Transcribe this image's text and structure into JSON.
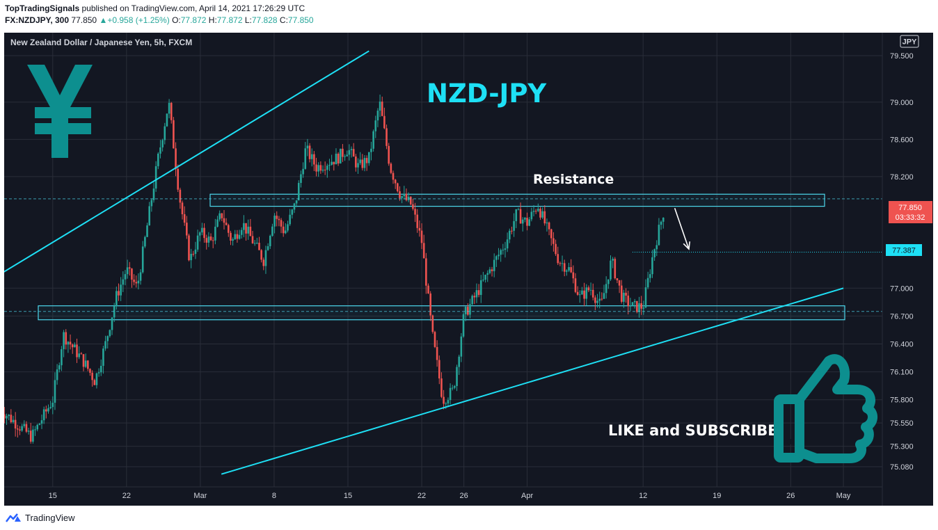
{
  "header": {
    "author": "TopTradingSignals",
    "published_text": "published on TradingView.com, April 14, 2021 17:26:29 UTC",
    "symbol_interval": "FX:NZDJPY, 300",
    "last": "77.850",
    "change": "+0.958 (+1.25%)",
    "o_label": "O:",
    "o": "77.872",
    "h_label": "H:",
    "h": "77.872",
    "l_label": "L:",
    "l": "77.828",
    "c_label": "C:",
    "c": "77.850"
  },
  "chart_data": {
    "type": "candlestick",
    "title": "New Zealand Dollar / Japanese Yen, 5h, FXCM",
    "currency_badge": "JPY",
    "overlay_title": "NZD-JPY",
    "resistance_label": "Resistance",
    "cta_text": "LIKE and SUBSCRIBE",
    "x_ticks": [
      "15",
      "22",
      "Mar",
      "8",
      "15",
      "22",
      "26",
      "Apr",
      "12",
      "19",
      "26",
      "May"
    ],
    "y_ticks": [
      "79.500",
      "79.000",
      "78.600",
      "78.200",
      "77.000",
      "76.700",
      "76.400",
      "76.100",
      "75.800",
      "75.550",
      "75.300",
      "75.080"
    ],
    "y_range": [
      74.9,
      79.6
    ],
    "last_price": "77.850",
    "countdown": "03:33:32",
    "level_price": "77.387",
    "resistance_zone": [
      77.88,
      78.01
    ],
    "support_zone": [
      76.66,
      76.81
    ],
    "close_path": [
      [
        "Feb 10",
        75.7
      ],
      [
        "Feb 13",
        75.4
      ],
      [
        "Feb 15",
        75.8
      ],
      [
        "Feb 16",
        76.5
      ],
      [
        "Feb 18",
        76.2
      ],
      [
        "Feb 19",
        76.0
      ],
      [
        "Feb 20",
        76.4
      ],
      [
        "Feb 21",
        76.9
      ],
      [
        "Feb 22",
        77.2
      ],
      [
        "Feb 23",
        77.0
      ],
      [
        "Feb 24",
        77.7
      ],
      [
        "Feb 25",
        78.4
      ],
      [
        "Feb 26",
        79.0
      ],
      [
        "Feb 27",
        78.0
      ],
      [
        "Feb 28",
        77.3
      ],
      [
        "Mar 1",
        77.6
      ],
      [
        "Mar 2",
        77.5
      ],
      [
        "Mar 3",
        77.8
      ],
      [
        "Mar 4",
        77.5
      ],
      [
        "Mar 5",
        77.7
      ],
      [
        "Mar 7",
        77.3
      ],
      [
        "Mar 8",
        77.8
      ],
      [
        "Mar 9",
        77.6
      ],
      [
        "Mar 10",
        77.9
      ],
      [
        "Mar 11",
        78.5
      ],
      [
        "Mar 12",
        78.3
      ],
      [
        "Mar 14",
        78.4
      ],
      [
        "Mar 15",
        78.5
      ],
      [
        "Mar 16",
        78.3
      ],
      [
        "Mar 17",
        78.4
      ],
      [
        "Mar 18",
        79.0
      ],
      [
        "Mar 19",
        78.3
      ],
      [
        "Mar 20",
        78.0
      ],
      [
        "Mar 21",
        77.9
      ],
      [
        "Mar 22",
        77.5
      ],
      [
        "Mar 23",
        76.5
      ],
      [
        "Mar 24",
        75.8
      ],
      [
        "Mar 25",
        75.9
      ],
      [
        "Mar 26",
        76.7
      ],
      [
        "Mar 27",
        76.9
      ],
      [
        "Mar 28",
        77.1
      ],
      [
        "Mar 29",
        77.3
      ],
      [
        "Mar 30",
        77.5
      ],
      [
        "Mar 31",
        77.8
      ],
      [
        "Apr 1",
        77.7
      ],
      [
        "Apr 2",
        77.9
      ],
      [
        "Apr 3",
        77.6
      ],
      [
        "Apr 4",
        77.3
      ],
      [
        "Apr 5",
        77.2
      ],
      [
        "Apr 6",
        76.9
      ],
      [
        "Apr 7",
        77.0
      ],
      [
        "Apr 8",
        76.8
      ],
      [
        "Apr 9",
        77.3
      ],
      [
        "Apr 10",
        76.9
      ],
      [
        "Apr 11",
        76.8
      ],
      [
        "Apr 12",
        76.8
      ],
      [
        "Apr 13",
        77.4
      ],
      [
        "Apr 14",
        77.85
      ]
    ],
    "trendlines": {
      "upper": [
        [
          "Feb 10",
          77.15
        ],
        [
          "Mar 17",
          79.55
        ]
      ],
      "lower": [
        [
          "Mar 3",
          75.0
        ],
        [
          "May 1",
          77.0
        ]
      ]
    },
    "projection_arrow": [
      [
        "Apr 15",
        77.86
      ],
      [
        "Apr 17",
        77.42
      ]
    ],
    "colors": {
      "background": "#131722",
      "up": "#26a69a",
      "down": "#ef5350",
      "trend": "#1ee0f5",
      "zone_border": "#4dd8ec",
      "grid": "#2a2e39",
      "axis_text": "#d1d4dc",
      "icon": "#0d8f8f",
      "price_label_bg": "#ef5350",
      "level_bg": "#1ee0f5"
    },
    "icons": {
      "currency": "yen-icon",
      "cta": "thumbs-up-icon",
      "brand": "tradingview-logo-icon"
    }
  },
  "footer": {
    "brand": "TradingView"
  }
}
